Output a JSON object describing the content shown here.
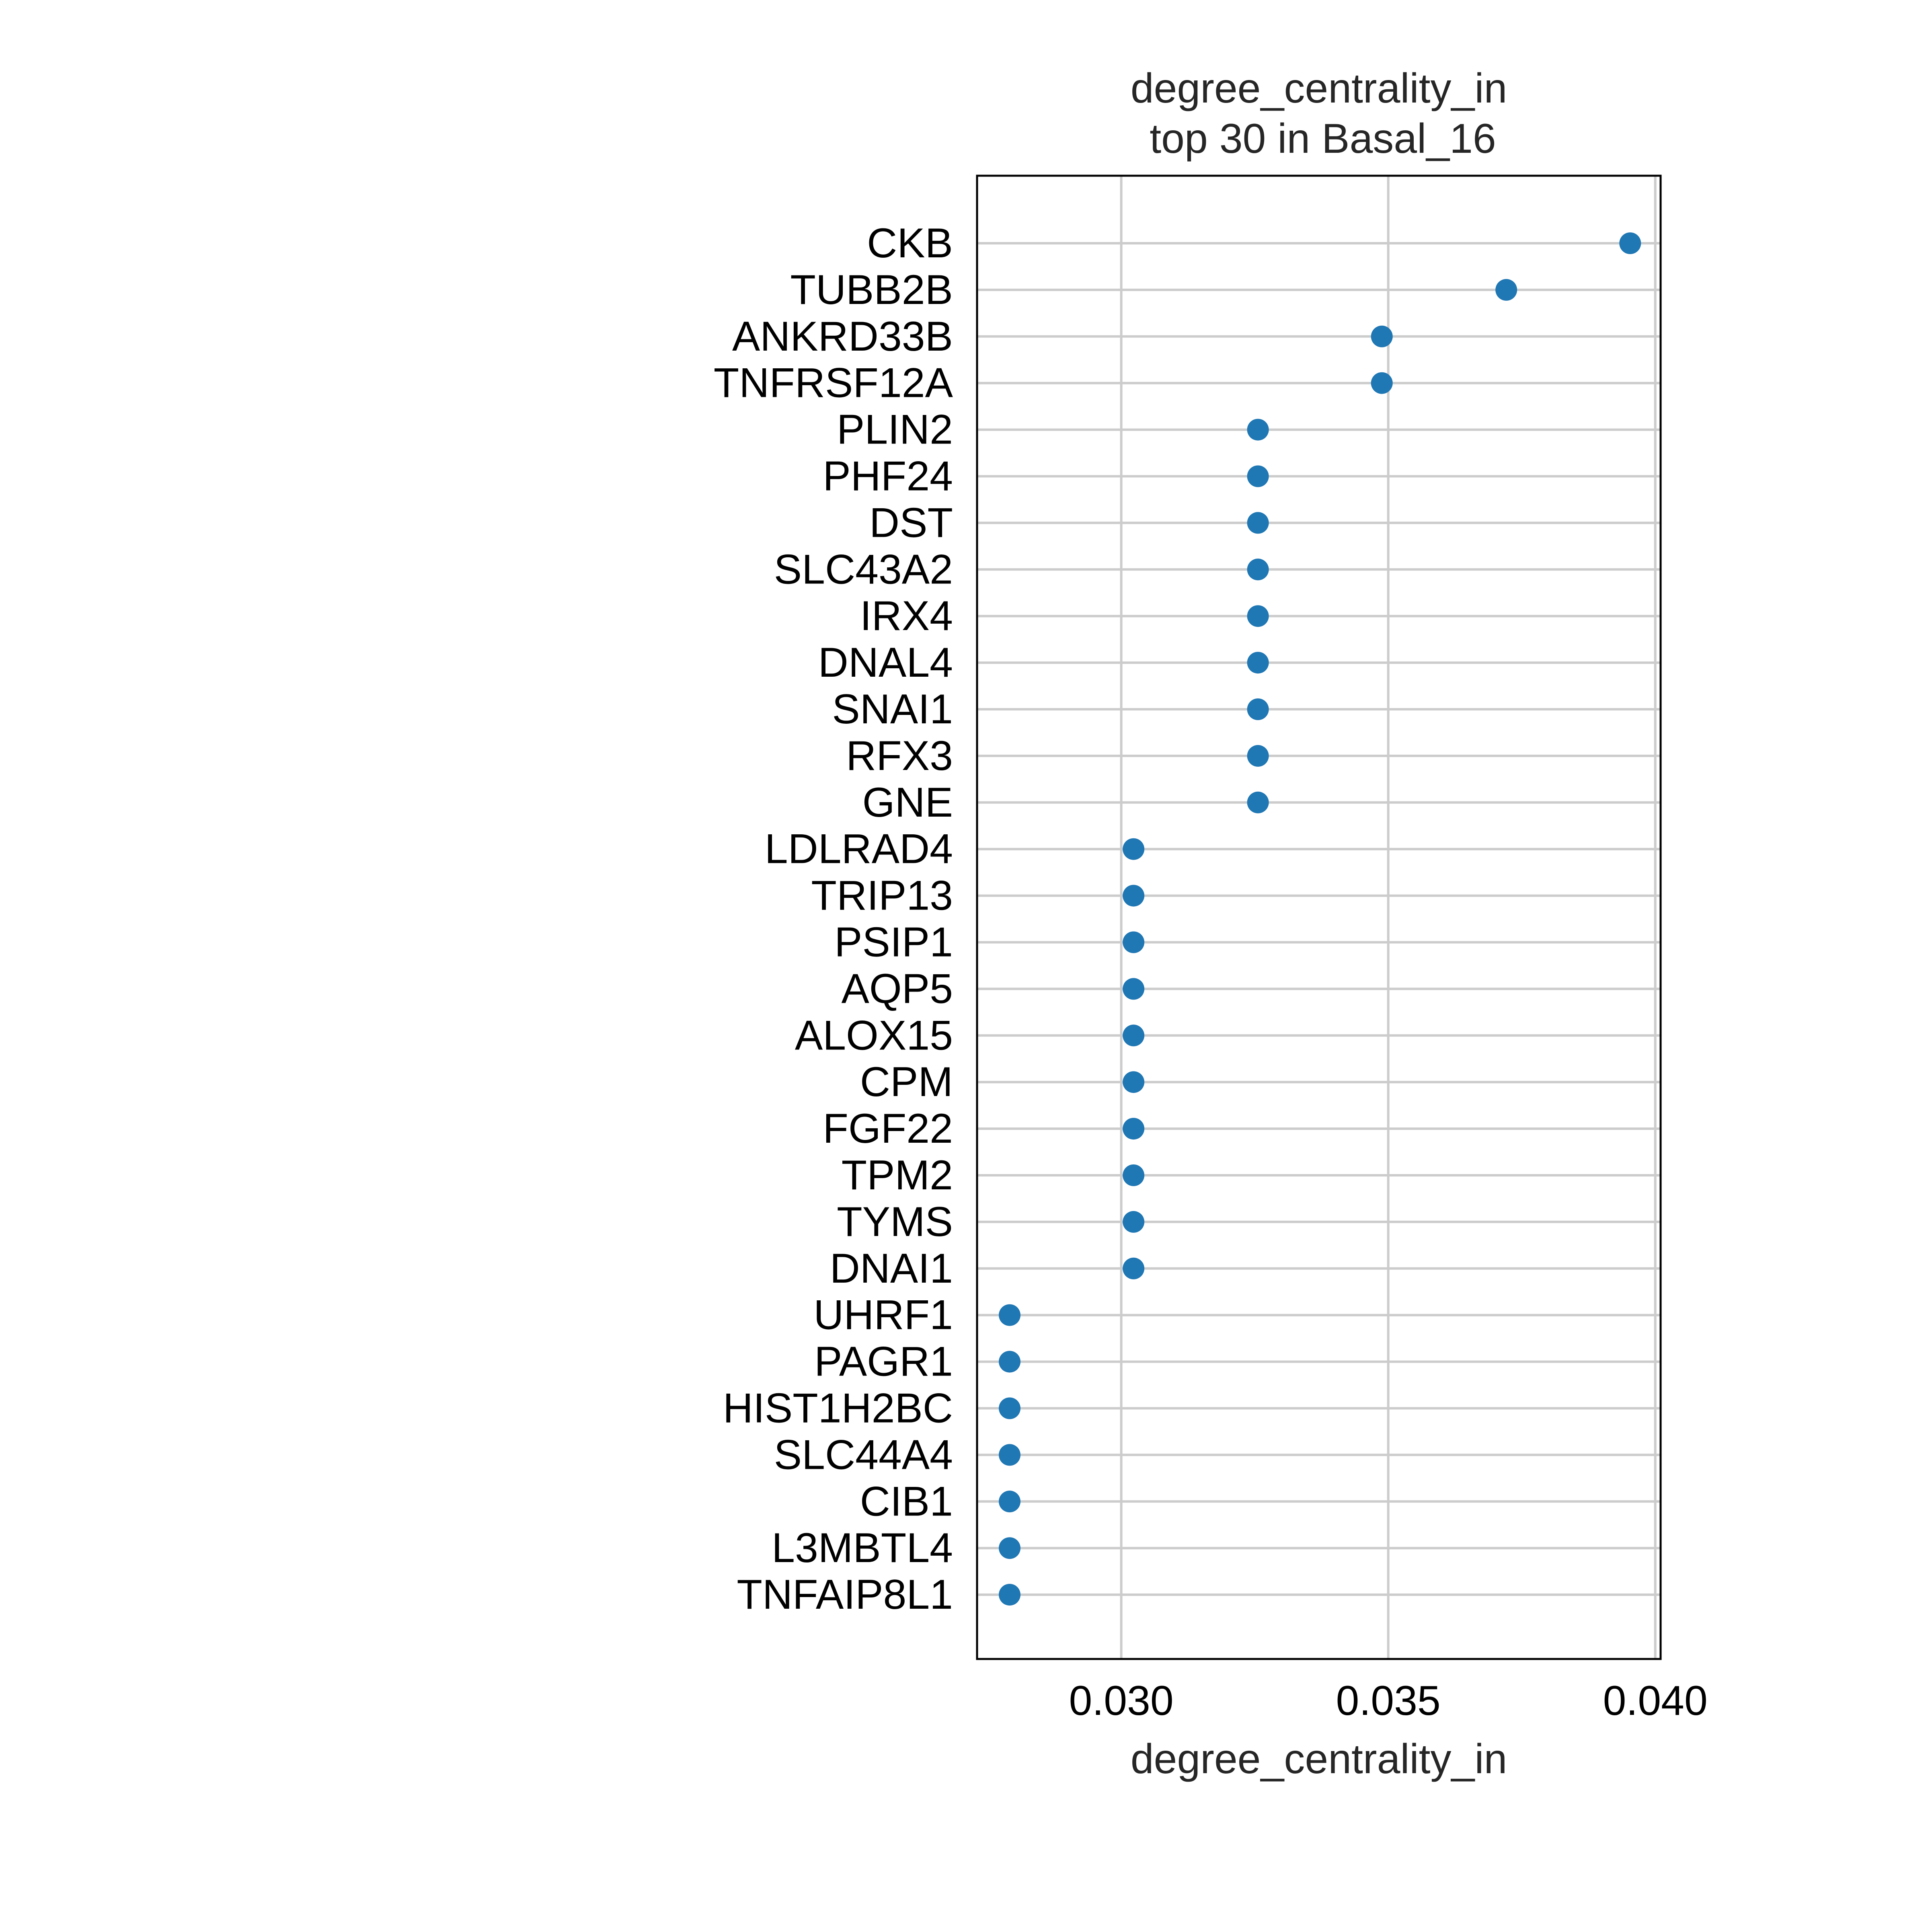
{
  "chart_data": {
    "type": "scatter",
    "title": "degree_centrality_in",
    "subtitle": "top 30 in Basal_16",
    "xlabel": "degree_centrality_in",
    "ylabel": "",
    "xlim": [
      0.0273,
      0.0401
    ],
    "xticks": [
      "0.030",
      "0.035",
      "0.040"
    ],
    "xtick_values": [
      0.03,
      0.035,
      0.04
    ],
    "grid": true,
    "marker_color": "#1f77b4",
    "categories": [
      "CKB",
      "TUBB2B",
      "ANKRD33B",
      "TNFRSF12A",
      "PLIN2",
      "PHF24",
      "DST",
      "SLC43A2",
      "IRX4",
      "DNAL4",
      "SNAI1",
      "RFX3",
      "GNE",
      "LDLRAD4",
      "TRIP13",
      "PSIP1",
      "AQP5",
      "ALOX15",
      "CPM",
      "FGF22",
      "TPM2",
      "TYMS",
      "DNAI1",
      "UHRF1",
      "PAGR1",
      "HIST1H2BC",
      "SLC44A4",
      "CIB1",
      "L3MBTL4",
      "TNFAIP8L1"
    ],
    "values": [
      0.03953,
      0.03721,
      0.03488,
      0.03488,
      0.03256,
      0.03256,
      0.03256,
      0.03256,
      0.03256,
      0.03256,
      0.03256,
      0.03256,
      0.03256,
      0.03023,
      0.03023,
      0.03023,
      0.03023,
      0.03023,
      0.03023,
      0.03023,
      0.03023,
      0.03023,
      0.03023,
      0.02791,
      0.02791,
      0.02791,
      0.02791,
      0.02791,
      0.02791,
      0.02791
    ]
  }
}
